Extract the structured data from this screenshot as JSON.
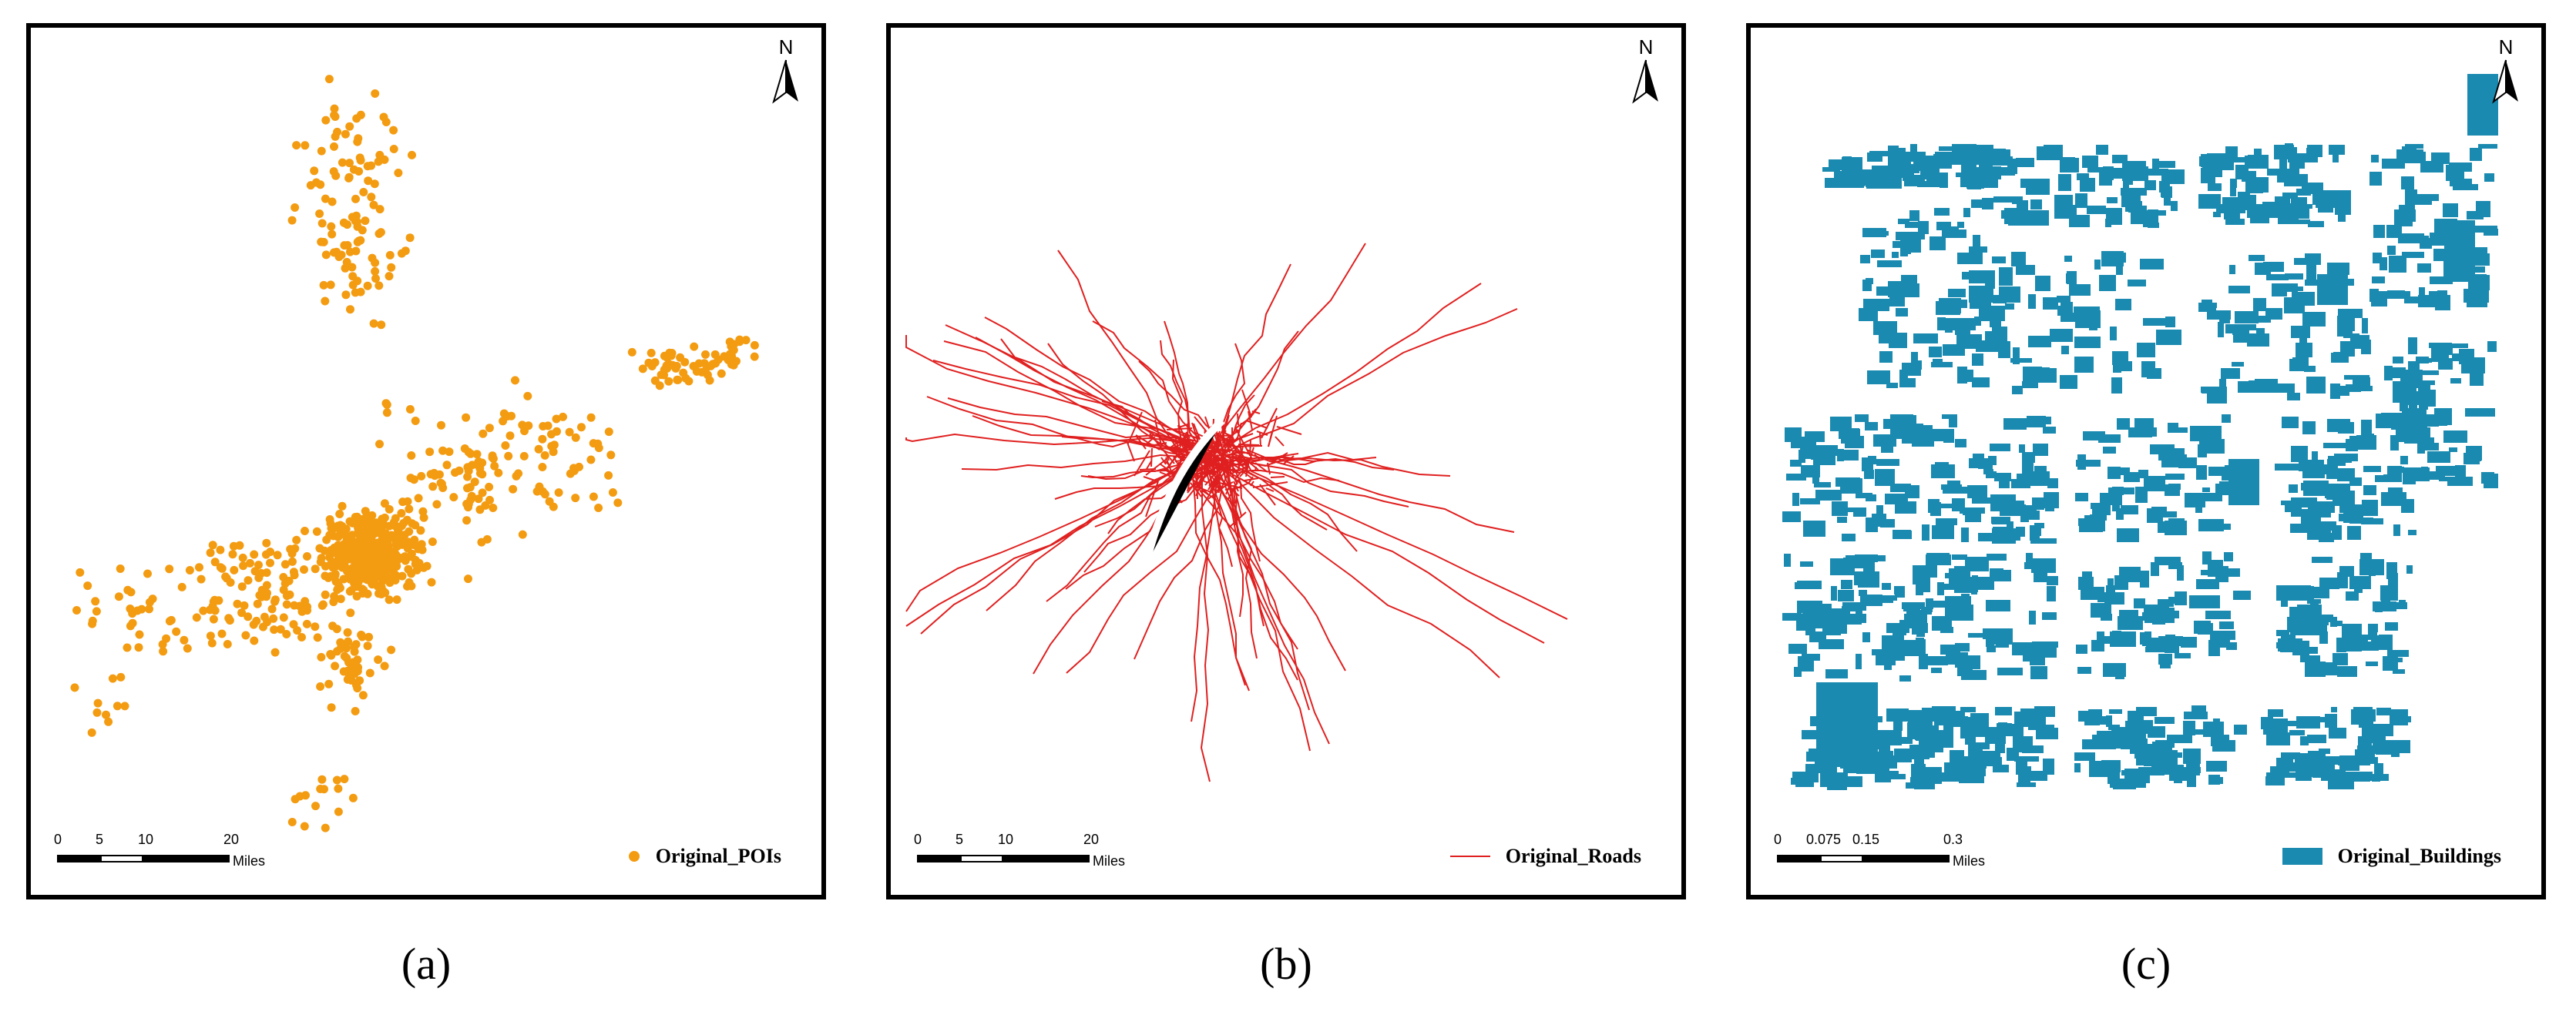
{
  "panels": [
    {
      "caption": "(a)",
      "north_label": "N",
      "scale": {
        "ticks": [
          "0",
          "5",
          "10",
          "20"
        ],
        "unit": "Miles"
      },
      "legend": {
        "label": "Original_POIs",
        "symbol": "point",
        "color": "#f39c12"
      }
    },
    {
      "caption": "(b)",
      "north_label": "N",
      "scale": {
        "ticks": [
          "0",
          "5",
          "10",
          "20"
        ],
        "unit": "Miles"
      },
      "legend": {
        "label": "Original_Roads",
        "symbol": "line",
        "color": "#e02020"
      }
    },
    {
      "caption": "(c)",
      "north_label": "N",
      "scale": {
        "ticks": [
          "0",
          "0.075",
          "0.15",
          "0.3"
        ],
        "unit": "Miles"
      },
      "legend": {
        "label": "Original_Buildings",
        "symbol": "polygon",
        "color": "#1a8ab0"
      }
    }
  ]
}
